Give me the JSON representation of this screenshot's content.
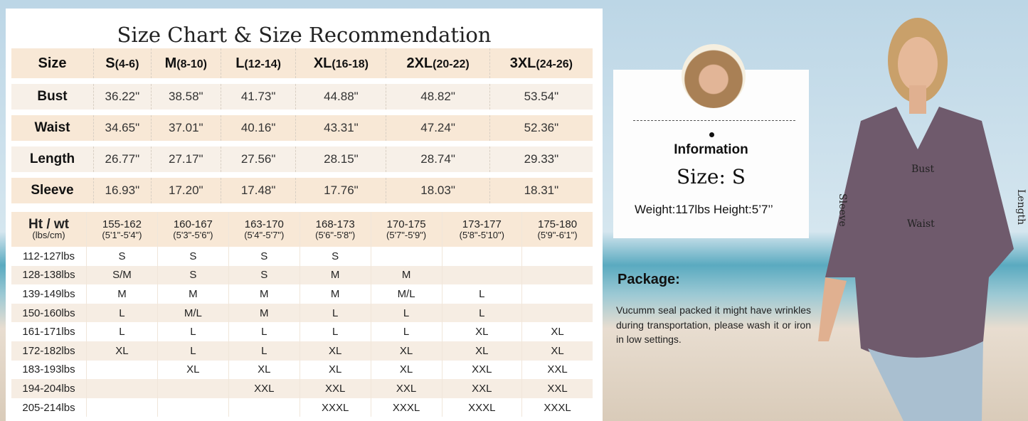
{
  "title": "Size Chart & Size Recommendation",
  "measurements": {
    "header": [
      "Size",
      {
        "size": "S",
        "range": "(4-6)"
      },
      {
        "size": "M",
        "range": "(8-10)"
      },
      {
        "size": "L",
        "range": "(12-14)"
      },
      {
        "size": "XL",
        "range": "(16-18)"
      },
      {
        "size": "2XL",
        "range": "(20-22)"
      },
      {
        "size": "3XL",
        "range": "(24-26)"
      }
    ],
    "rows": [
      {
        "label": "Bust",
        "values": [
          "36.22\"",
          "38.58\"",
          "41.73\"",
          "44.88\"",
          "48.82\"",
          "53.54\""
        ]
      },
      {
        "label": "Waist",
        "values": [
          "34.65\"",
          "37.01\"",
          "40.16\"",
          "43.31\"",
          "47.24\"",
          "52.36\""
        ]
      },
      {
        "label": "Length",
        "values": [
          "26.77\"",
          "27.17\"",
          "27.56\"",
          "28.15\"",
          "28.74\"",
          "29.33\""
        ]
      },
      {
        "label": "Sleeve",
        "values": [
          "16.93\"",
          "17.20\"",
          "17.48\"",
          "17.76\"",
          "18.03\"",
          "18.31\""
        ]
      }
    ]
  },
  "recommendation": {
    "corner": {
      "main": "Ht / wt",
      "sub": "(lbs/cm)"
    },
    "heights": [
      {
        "cm": "155-162",
        "ft": "(5'1\"-5'4\")"
      },
      {
        "cm": "160-167",
        "ft": "(5'3\"-5'6\")"
      },
      {
        "cm": "163-170",
        "ft": "(5'4\"-5'7\")"
      },
      {
        "cm": "168-173",
        "ft": "(5'6\"-5'8\")"
      },
      {
        "cm": "170-175",
        "ft": "(5'7\"-5'9\")"
      },
      {
        "cm": "173-177",
        "ft": "(5'8\"-5'10\")"
      },
      {
        "cm": "175-180",
        "ft": "(5'9\"-6'1\")"
      }
    ],
    "rows": [
      {
        "weight": "112-127lbs",
        "sizes": [
          "S",
          "S",
          "S",
          "S",
          "",
          "",
          ""
        ]
      },
      {
        "weight": "128-138lbs",
        "sizes": [
          "S/M",
          "S",
          "S",
          "M",
          "M",
          "",
          ""
        ]
      },
      {
        "weight": "139-149lbs",
        "sizes": [
          "M",
          "M",
          "M",
          "M",
          "M/L",
          "L",
          ""
        ]
      },
      {
        "weight": "150-160lbs",
        "sizes": [
          "L",
          "M/L",
          "M",
          "L",
          "L",
          "L",
          ""
        ]
      },
      {
        "weight": "161-171lbs",
        "sizes": [
          "L",
          "L",
          "L",
          "L",
          "L",
          "XL",
          "XL"
        ]
      },
      {
        "weight": "172-182lbs",
        "sizes": [
          "XL",
          "L",
          "L",
          "XL",
          "XL",
          "XL",
          "XL"
        ]
      },
      {
        "weight": "183-193lbs",
        "sizes": [
          "",
          "XL",
          "XL",
          "XL",
          "XL",
          "XXL",
          "XXL"
        ]
      },
      {
        "weight": "194-204lbs",
        "sizes": [
          "",
          "",
          "XXL",
          "XXL",
          "XXL",
          "XXL",
          "XXL"
        ]
      },
      {
        "weight": "205-214lbs",
        "sizes": [
          "",
          "",
          "",
          "XXXL",
          "XXXL",
          "XXXL",
          "XXXL"
        ]
      }
    ]
  },
  "model_info": {
    "heading": "Information",
    "size": "Size: S",
    "stats": "Weight:117lbs Height:5’7’’"
  },
  "package": {
    "heading": "Package:",
    "text": "Vucumm seal packed it might have wrinkles during transportation, please wash it or iron in low settings."
  },
  "garment_labels": {
    "bust": "Bust",
    "waist": "Waist",
    "sleeve": "Sleeve",
    "length": "Length"
  },
  "colors": {
    "header_bg": "#f8e8d6",
    "row_light": "#f7f0e8",
    "shirt": "#6f5a6c"
  }
}
